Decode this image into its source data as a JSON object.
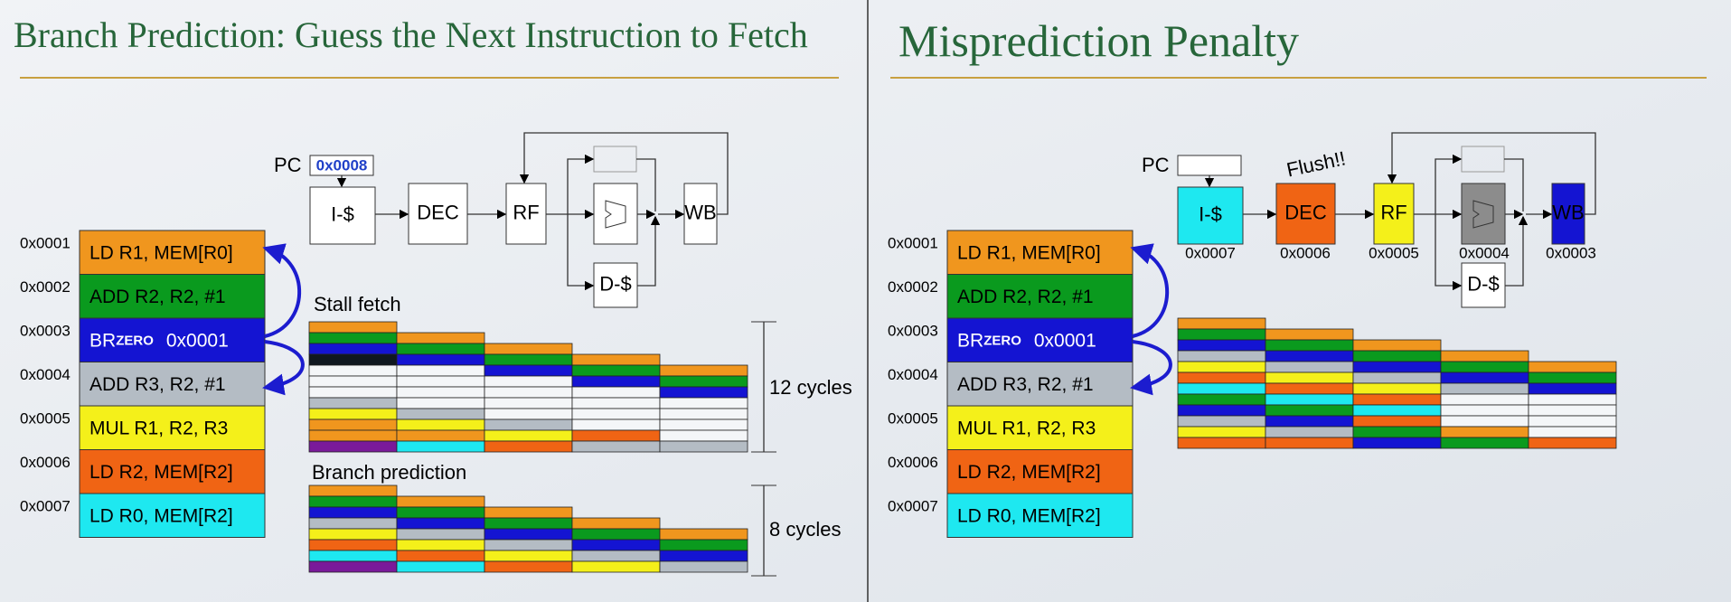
{
  "left": {
    "title": "Branch Prediction: Guess the Next Instruction to Fetch",
    "pc_label": "PC",
    "pc_value": "0x0008",
    "stages": {
      "icache": "I-$",
      "dec": "DEC",
      "rf": "RF",
      "wb": "WB",
      "dcache": "D-$"
    },
    "instructions": [
      {
        "address": "0x0001",
        "text": "LD R1, MEM[R0]"
      },
      {
        "address": "0x0002",
        "text": "ADD R2, R2, #1"
      },
      {
        "address": "0x0003",
        "text": "BR",
        "suffix": "ZERO",
        "target": "0x0001"
      },
      {
        "address": "0x0004",
        "text": "ADD R3, R2, #1"
      },
      {
        "address": "0x0005",
        "text": "MUL R1, R2, R3"
      },
      {
        "address": "0x0006",
        "text": "LD R2, MEM[R2]"
      },
      {
        "address": "0x0007",
        "text": "LD R0, MEM[R2]"
      }
    ],
    "stall_label": "Stall fetch",
    "stall_cycles": "12 cycles",
    "predict_label": "Branch prediction",
    "predict_cycles": "8 cycles"
  },
  "right": {
    "title": "Misprediction Penalty",
    "pc_label": "PC",
    "flush": "Flush!!",
    "stages": {
      "icache": "I-$",
      "dec": "DEC",
      "rf": "RF",
      "wb": "WB",
      "dcache": "D-$"
    },
    "stage_pcs": [
      "0x0007",
      "0x0006",
      "0x0005",
      "0x0004",
      "0x0003"
    ],
    "instructions": [
      {
        "address": "0x0001",
        "text": "LD R1, MEM[R0]"
      },
      {
        "address": "0x0002",
        "text": "ADD R2, R2, #1"
      },
      {
        "address": "0x0003",
        "text": "BR",
        "suffix": "ZERO",
        "target": "0x0001"
      },
      {
        "address": "0x0004",
        "text": "ADD R3, R2, #1"
      },
      {
        "address": "0x0005",
        "text": "MUL R1, R2, R3"
      },
      {
        "address": "0x0006",
        "text": "LD R2, MEM[R2]"
      },
      {
        "address": "0x0007",
        "text": "LD R0, MEM[R2]"
      }
    ]
  }
}
